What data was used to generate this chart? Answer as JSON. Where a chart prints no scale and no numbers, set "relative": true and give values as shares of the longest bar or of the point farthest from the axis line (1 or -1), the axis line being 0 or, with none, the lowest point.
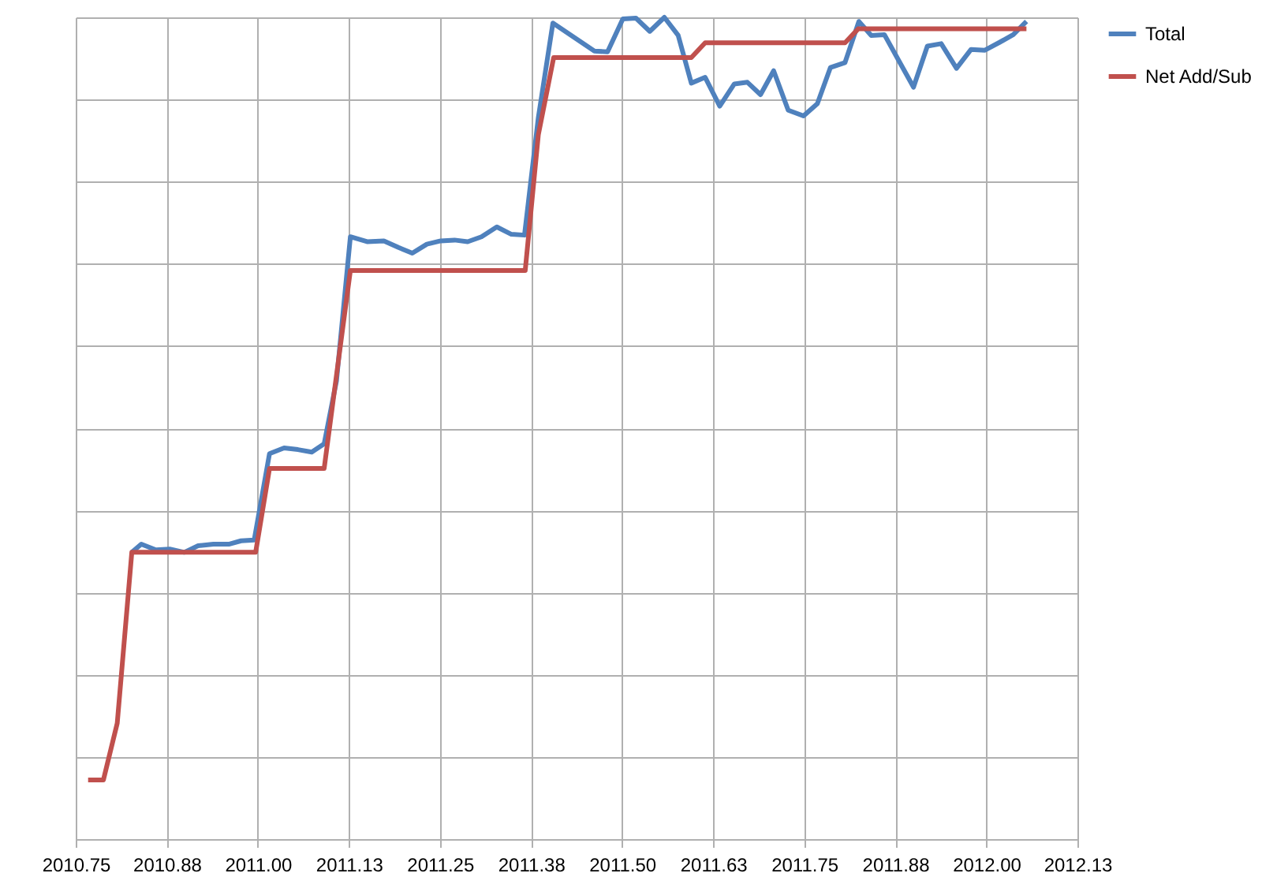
{
  "chart_data": {
    "type": "line",
    "relative": true,
    "grid": true,
    "legend": "right",
    "line_style": "solid",
    "xlim": [
      2010.75,
      2012.125
    ],
    "xticks": [
      "2010.75",
      {
        "value": 2010.875,
        "label": "2010.88"
      },
      {
        "value": 2011.0,
        "label": "2011.00"
      },
      {
        "value": 2011.125,
        "label": "2011.13"
      },
      "2011.25",
      {
        "value": 2011.375,
        "label": "2011.38"
      },
      {
        "value": 2011.5,
        "label": "2011.50"
      },
      {
        "value": 2011.625,
        "label": "2011.63"
      },
      "2011.75",
      {
        "value": 2011.875,
        "label": "2011.88"
      },
      {
        "value": 2012.0,
        "label": "2012.00"
      },
      {
        "value": 2012.125,
        "label": "2012.13"
      }
    ],
    "series": [
      {
        "name": "Total",
        "color": "#4f81bd",
        "x": [
          2010.827,
          2010.84,
          2010.86,
          2010.879,
          2010.899,
          2010.918,
          2010.939,
          2010.961,
          2010.977,
          2010.995,
          2011.016,
          2011.036,
          2011.055,
          2011.074,
          2011.091,
          2011.108,
          2011.127,
          2011.15,
          2011.173,
          2011.193,
          2011.212,
          2011.232,
          2011.251,
          2011.27,
          2011.288,
          2011.307,
          2011.328,
          2011.348,
          2011.366,
          2011.385,
          2011.405,
          2011.462,
          2011.48,
          2011.501,
          2011.519,
          2011.538,
          2011.558,
          2011.577,
          2011.595,
          2011.614,
          2011.634,
          2011.654,
          2011.672,
          2011.69,
          2011.708,
          2011.728,
          2011.749,
          2011.768,
          2011.786,
          2011.806,
          2011.825,
          2011.842,
          2011.86,
          2011.88,
          2011.9,
          2011.919,
          2011.938,
          2011.959,
          2011.979,
          2011.998,
          2012.019,
          2012.037,
          2012.055
        ],
        "values": [
          0.349,
          0.359,
          0.352,
          0.353,
          0.349,
          0.357,
          0.359,
          0.359,
          0.363,
          0.364,
          0.469,
          0.476,
          0.474,
          0.471,
          0.481,
          0.558,
          0.733,
          0.727,
          0.728,
          0.72,
          0.713,
          0.724,
          0.728,
          0.729,
          0.727,
          0.733,
          0.745,
          0.736,
          0.735,
          0.878,
          0.993,
          0.959,
          0.958,
          0.998,
          0.999,
          0.983,
          1.0,
          0.978,
          0.92,
          0.927,
          0.892,
          0.919,
          0.921,
          0.906,
          0.935,
          0.887,
          0.88,
          0.895,
          0.939,
          0.945,
          0.995,
          0.978,
          0.979,
          0.947,
          0.915,
          0.965,
          0.968,
          0.938,
          0.961,
          0.96,
          0.97,
          0.979,
          0.995
        ]
      },
      {
        "name": "Net Add/Sub",
        "color": "#c0504d",
        "x": [
          2010.767,
          2010.788,
          2010.807,
          2010.827,
          2010.997,
          2011.016,
          2011.091,
          2011.127,
          2011.367,
          2011.385,
          2011.406,
          2011.595,
          2011.614,
          2011.806,
          2011.824,
          2012.055
        ],
        "values": [
          0.072,
          0.072,
          0.141,
          0.349,
          0.349,
          0.451,
          0.451,
          0.692,
          0.692,
          0.857,
          0.951,
          0.951,
          0.969,
          0.969,
          0.986,
          0.986
        ]
      }
    ]
  }
}
